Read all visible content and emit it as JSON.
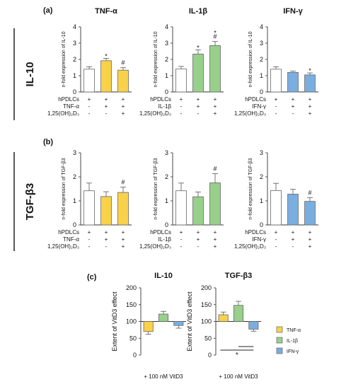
{
  "panel_labels": {
    "a": "(a)",
    "b": "(b)",
    "c": "(c)"
  },
  "row_labels": {
    "row1": "IL-10",
    "row2": "TGF-β3"
  },
  "column_titles": [
    "TNF-α",
    "IL-1β",
    "IFN-γ"
  ],
  "colors": {
    "tnf": "#f9d24a",
    "il1": "#98d08b",
    "ifn": "#7aaee0",
    "ctrl": "#ffffff"
  },
  "chart_data": [
    {
      "id": "a1",
      "type": "bar",
      "title": "TNF-α",
      "ylabel": "n-fold expression of IL-10",
      "ylim": [
        0,
        4
      ],
      "yticks": [
        0,
        1,
        2,
        3,
        4
      ],
      "categories": [
        "ctrl",
        "stim",
        "stim+vitd"
      ],
      "values": [
        1.4,
        1.92,
        1.34
      ],
      "errors": [
        0.15,
        0.15,
        0.15
      ],
      "annotations": [
        "",
        "*",
        "#"
      ],
      "fill": [
        "ctrl",
        "tnf",
        "tnf"
      ],
      "condition_rows": [
        {
          "label": "hPDLCs",
          "marks": [
            "+",
            "+",
            "+"
          ]
        },
        {
          "label": "TNF-α",
          "marks": [
            "-",
            "+",
            "+"
          ]
        },
        {
          "label": "1,25(OH)₂D₃",
          "marks": [
            "-",
            "-",
            "+"
          ]
        }
      ]
    },
    {
      "id": "a2",
      "type": "bar",
      "title": "IL-1β",
      "ylabel": "n-fold expression of IL-10",
      "ylim": [
        0,
        4
      ],
      "yticks": [
        0,
        1,
        2,
        3,
        4
      ],
      "categories": [
        "ctrl",
        "stim",
        "stim+vitd"
      ],
      "values": [
        1.42,
        2.33,
        2.85
      ],
      "errors": [
        0.15,
        0.25,
        0.25
      ],
      "annotations": [
        "",
        "*",
        "*\n#"
      ],
      "fill": [
        "ctrl",
        "il1",
        "il1"
      ],
      "condition_rows": [
        {
          "label": "hPDLCs",
          "marks": [
            "+",
            "+",
            "+"
          ]
        },
        {
          "label": "IL-1β",
          "marks": [
            "-",
            "+",
            "+"
          ]
        },
        {
          "label": "1,25(OH)₂D₃",
          "marks": [
            "-",
            "-",
            "+"
          ]
        }
      ]
    },
    {
      "id": "a3",
      "type": "bar",
      "title": "IFN-γ",
      "ylabel": "n-fold expression of IL-10",
      "ylim": [
        0,
        4
      ],
      "yticks": [
        0,
        1,
        2,
        3,
        4
      ],
      "categories": [
        "ctrl",
        "stim",
        "stim+vitd"
      ],
      "values": [
        1.4,
        1.2,
        1.05
      ],
      "errors": [
        0.15,
        0.08,
        0.12
      ],
      "annotations": [
        "",
        "",
        "*"
      ],
      "fill": [
        "ctrl",
        "ifn",
        "ifn"
      ],
      "condition_rows": [
        {
          "label": "hPDLCs",
          "marks": [
            "+",
            "+",
            "+"
          ]
        },
        {
          "label": "IFN-γ",
          "marks": [
            "-",
            "+",
            "+"
          ]
        },
        {
          "label": "1,25(OH)₂D₃",
          "marks": [
            "-",
            "-",
            "+"
          ]
        }
      ]
    },
    {
      "id": "b1",
      "type": "bar",
      "title": "",
      "ylabel": "n-fold expression of TGF-β3",
      "ylim": [
        0,
        3
      ],
      "yticks": [
        0,
        1,
        2,
        3
      ],
      "categories": [
        "ctrl",
        "stim",
        "stim+vitd"
      ],
      "values": [
        1.42,
        1.18,
        1.35
      ],
      "errors": [
        0.32,
        0.2,
        0.22
      ],
      "annotations": [
        "",
        "",
        "#"
      ],
      "fill": [
        "ctrl",
        "tnf",
        "tnf"
      ],
      "condition_rows": [
        {
          "label": "hPDLCs",
          "marks": [
            "+",
            "+",
            "+"
          ]
        },
        {
          "label": "TNF-α",
          "marks": [
            "-",
            "+",
            "+"
          ]
        },
        {
          "label": "1,25(OH)₂D₃",
          "marks": [
            "-",
            "-",
            "+"
          ]
        }
      ]
    },
    {
      "id": "b2",
      "type": "bar",
      "title": "",
      "ylabel": "n-fold expression of TGF-β3",
      "ylim": [
        0,
        3
      ],
      "yticks": [
        0,
        1,
        2,
        3
      ],
      "categories": [
        "ctrl",
        "stim",
        "stim+vitd"
      ],
      "values": [
        1.42,
        1.17,
        1.75
      ],
      "errors": [
        0.32,
        0.2,
        0.38
      ],
      "annotations": [
        "",
        "",
        "#"
      ],
      "fill": [
        "ctrl",
        "il1",
        "il1"
      ],
      "condition_rows": [
        {
          "label": "hPDLCs",
          "marks": [
            "+",
            "+",
            "+"
          ]
        },
        {
          "label": "IL-1β",
          "marks": [
            "-",
            "+",
            "+"
          ]
        },
        {
          "label": "1,25(OH)₂D₃",
          "marks": [
            "-",
            "-",
            "+"
          ]
        }
      ]
    },
    {
      "id": "b3",
      "type": "bar",
      "title": "",
      "ylabel": "n-fold expression of TGF-β3",
      "ylim": [
        0,
        3
      ],
      "yticks": [
        0,
        1,
        2,
        3
      ],
      "categories": [
        "ctrl",
        "stim",
        "stim+vitd"
      ],
      "values": [
        1.43,
        1.28,
        0.98
      ],
      "errors": [
        0.3,
        0.2,
        0.15
      ],
      "annotations": [
        "",
        "",
        "#"
      ],
      "fill": [
        "ctrl",
        "ifn",
        "ifn"
      ],
      "condition_rows": [
        {
          "label": "hPDLCs",
          "marks": [
            "+",
            "+",
            "+"
          ]
        },
        {
          "label": "IFN-γ",
          "marks": [
            "-",
            "+",
            "+"
          ]
        },
        {
          "label": "1,25(OH)₂D₃",
          "marks": [
            "-",
            "-",
            "+"
          ]
        }
      ]
    },
    {
      "id": "c1",
      "type": "bar",
      "title": "IL-10",
      "ylabel": "Extent of VitD3 effect",
      "ylim": [
        0,
        200
      ],
      "yticks": [
        0,
        50,
        100,
        150,
        200
      ],
      "baseline": 100,
      "categories": [
        "TNF-α",
        "IL-1β",
        "IFN-γ"
      ],
      "values": [
        70,
        122,
        88
      ],
      "errors": [
        8,
        8,
        8
      ],
      "annotations": [
        "",
        "",
        ""
      ],
      "fill": [
        "tnf",
        "il1",
        "ifn"
      ],
      "xlabel": "+ 100 nM VitD3"
    },
    {
      "id": "c2",
      "type": "bar",
      "title": "TGF-β3",
      "ylabel": "Extent of VitD3 effect",
      "ylim": [
        0,
        200
      ],
      "yticks": [
        0,
        50,
        100,
        150,
        200
      ],
      "baseline": 100,
      "categories": [
        "TNF-α",
        "IL-1β",
        "IFN-γ"
      ],
      "values": [
        120,
        148,
        77
      ],
      "errors": [
        8,
        12,
        6
      ],
      "annotations": [
        "",
        "",
        ""
      ],
      "fill": [
        "tnf",
        "il1",
        "ifn"
      ],
      "xlabel": "+ 100 nM VitD3",
      "significance": "*",
      "legend": {
        "placement": "right",
        "entries": [
          {
            "label": "TNF-α",
            "color": "tnf"
          },
          {
            "label": "IL-1β",
            "color": "il1"
          },
          {
            "label": "IFN-γ",
            "color": "ifn"
          }
        ]
      }
    }
  ]
}
